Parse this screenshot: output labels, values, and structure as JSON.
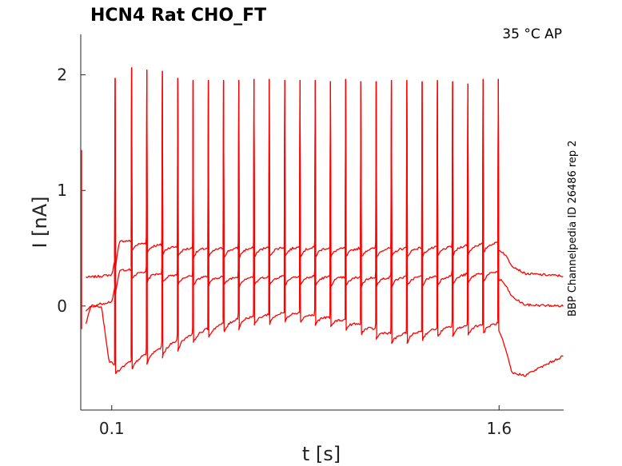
{
  "chart_data": {
    "type": "line",
    "title": "HCN4  Rat  CHO_FT",
    "condition": "35 °C  AP",
    "side_label": "BBP Channelpedia ID 26486 rep 2",
    "xlabel": "t [s]",
    "ylabel": "I [nA]",
    "xlim": [
      -0.02,
      1.85
    ],
    "ylim": [
      -0.9,
      2.35
    ],
    "x_ticks": [
      {
        "value": 0.1,
        "label": "0.1"
      },
      {
        "value": 1.6,
        "label": "1.6"
      }
    ],
    "y_ticks": [
      {
        "value": 0,
        "label": "0"
      },
      {
        "value": 1,
        "label": "1"
      },
      {
        "value": 2,
        "label": "2"
      }
    ],
    "grid": false,
    "legend": "none",
    "line_color": "#ff0000",
    "spike_times": [
      0.113,
      0.177,
      0.236,
      0.296,
      0.356,
      0.415,
      0.474,
      0.533,
      0.592,
      0.651,
      0.71,
      0.77,
      0.829,
      0.888,
      0.947,
      1.006,
      1.065,
      1.124,
      1.183,
      1.243,
      1.302,
      1.361,
      1.42,
      1.479,
      1.538,
      1.597
    ],
    "spike_peaks": [
      1.97,
      2.06,
      2.04,
      2.03,
      1.97,
      1.95,
      1.95,
      1.95,
      1.95,
      1.96,
      1.96,
      1.95,
      1.95,
      1.95,
      1.94,
      1.96,
      1.94,
      1.94,
      1.95,
      1.95,
      1.94,
      1.95,
      1.94,
      1.92,
      1.96,
      1.96
    ],
    "series": [
      {
        "rep": 1,
        "color": "#ff0000",
        "x": [
          0.0,
          0.02,
          0.06,
          0.1,
          0.13,
          0.2,
          0.4,
          0.6,
          0.8,
          1.0,
          1.2,
          1.4,
          1.6,
          1.65,
          1.7,
          1.85
        ],
        "y": [
          0.25,
          0.25,
          0.26,
          0.27,
          0.58,
          0.55,
          0.5,
          0.5,
          0.51,
          0.5,
          0.5,
          0.51,
          0.55,
          0.35,
          0.28,
          0.26
        ]
      },
      {
        "rep": 2,
        "color": "#ff0000",
        "x": [
          0.0,
          0.02,
          0.06,
          0.1,
          0.13,
          0.2,
          0.4,
          0.6,
          0.8,
          1.0,
          1.2,
          1.4,
          1.6,
          1.65,
          1.7,
          1.85
        ],
        "y": [
          -0.05,
          0.0,
          0.02,
          0.04,
          0.33,
          0.3,
          0.26,
          0.25,
          0.26,
          0.25,
          0.25,
          0.26,
          0.3,
          0.08,
          0.01,
          0.0
        ]
      },
      {
        "rep": 3,
        "color": "#ff0000",
        "x": [
          0.0,
          0.02,
          0.06,
          0.09,
          0.13,
          0.2,
          0.4,
          0.6,
          0.8,
          1.0,
          1.2,
          1.4,
          1.6,
          1.65,
          1.7,
          1.85
        ],
        "y": [
          -0.15,
          0.0,
          0.0,
          -0.48,
          -0.53,
          -0.45,
          -0.25,
          -0.1,
          -0.05,
          -0.12,
          -0.25,
          -0.18,
          -0.15,
          -0.58,
          -0.6,
          -0.43
        ]
      }
    ]
  }
}
